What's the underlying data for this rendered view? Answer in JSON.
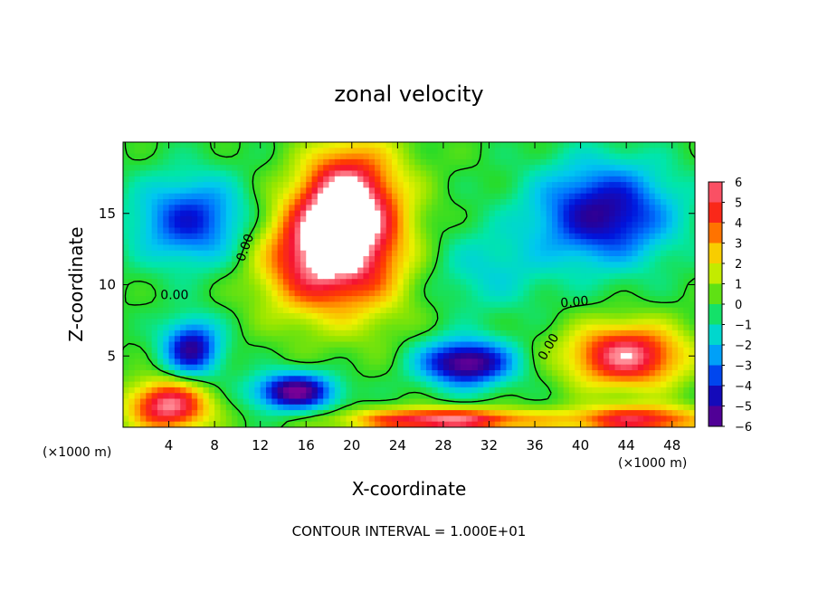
{
  "chart_data": {
    "type": "heatmap",
    "title": "zonal velocity",
    "xlabel": "X-coordinate",
    "ylabel": "Z-coordinate",
    "x_unit": "(×1000 m)",
    "x_unit_right": "(×1000 m)",
    "footer": "CONTOUR INTERVAL = 1.000E+01",
    "xlim": [
      0,
      50
    ],
    "ylim": [
      0,
      20
    ],
    "x_ticks": [
      4,
      8,
      12,
      16,
      20,
      24,
      28,
      32,
      36,
      40,
      44,
      48
    ],
    "y_ticks": [
      5,
      10,
      15
    ],
    "colorbar": {
      "levels": [
        6,
        5,
        4,
        3,
        2,
        1,
        0,
        -1,
        -2,
        -3,
        -4,
        -5,
        -6
      ],
      "labels": [
        "6",
        "5",
        "4",
        "3",
        "2",
        "1",
        "0",
        "−1",
        "−2",
        "−3",
        "−4",
        "−5",
        "−6"
      ]
    },
    "contour_labels": [
      "0.00",
      "0.00",
      "0.00",
      "0.00"
    ],
    "features": [
      {
        "x": 17,
        "z": 12,
        "value": 6,
        "sx": 5,
        "sz": 4
      },
      {
        "x": 19,
        "z": 16,
        "value": 5,
        "sx": 3.5,
        "sz": 3.5
      },
      {
        "x": 22,
        "z": 14,
        "value": 3,
        "sx": 4,
        "sz": 6
      },
      {
        "x": 6,
        "z": 14.5,
        "value": -4,
        "sx": 5,
        "sz": 3
      },
      {
        "x": 42,
        "z": 15,
        "value": -5,
        "sx": 6,
        "sz": 3.5
      },
      {
        "x": 32,
        "z": 11,
        "value": -1.5,
        "sx": 5,
        "sz": 3
      },
      {
        "x": 30,
        "z": 4.5,
        "value": -6,
        "sx": 4,
        "sz": 1.6
      },
      {
        "x": 15,
        "z": 2.5,
        "value": -6,
        "sx": 3.5,
        "sz": 1.3
      },
      {
        "x": 6,
        "z": 5.5,
        "value": -5,
        "sx": 2.5,
        "sz": 2
      },
      {
        "x": 44,
        "z": 5,
        "value": 6,
        "sx": 5,
        "sz": 2.2
      },
      {
        "x": 4,
        "z": 1.5,
        "value": 6,
        "sx": 3.5,
        "sz": 1.8
      },
      {
        "x": 28,
        "z": 0.5,
        "value": 6,
        "sx": 8,
        "sz": 0.8
      },
      {
        "x": 45,
        "z": 0.5,
        "value": 5,
        "sx": 6,
        "sz": 1
      }
    ]
  }
}
